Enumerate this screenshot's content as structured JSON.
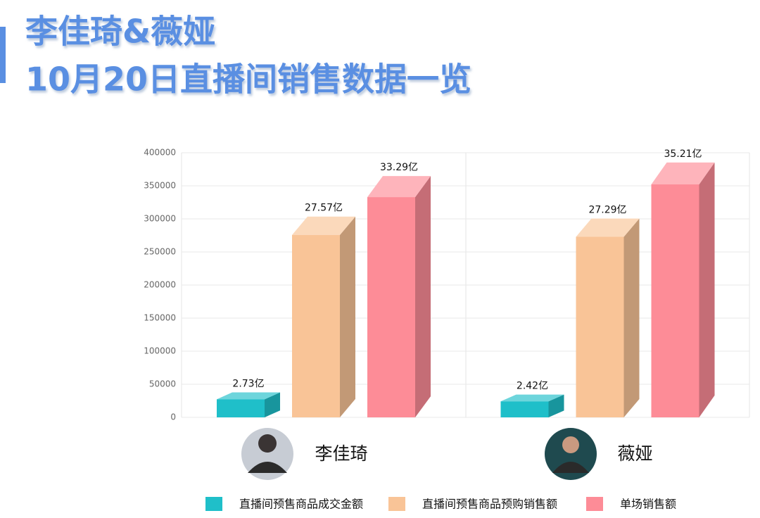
{
  "chart_data": {
    "type": "bar3d",
    "title_lines": [
      "李佳琦&薇娅",
      "10月20日直播间销售数据一览"
    ],
    "categories": [
      "李佳琦",
      "薇娅"
    ],
    "series": [
      {
        "name": "直播间预售商品成交金额",
        "color": "#1fbfc9",
        "values": [
          27300,
          24200
        ],
        "value_labels": [
          "2.73亿",
          "2.42亿"
        ]
      },
      {
        "name": "直播间预售商品预购销售额",
        "color": "#f9c497",
        "values": [
          275700,
          272900
        ],
        "value_labels": [
          "27.57亿",
          "27.29亿"
        ]
      },
      {
        "name": "单场销售额",
        "color": "#fd8c97",
        "values": [
          332900,
          352100
        ],
        "value_labels": [
          "33.29亿",
          "35.21亿"
        ]
      }
    ],
    "ylim": [
      0,
      400000
    ],
    "yticks": [
      0,
      50000,
      100000,
      150000,
      200000,
      250000,
      300000,
      350000,
      400000
    ],
    "grid": true
  }
}
